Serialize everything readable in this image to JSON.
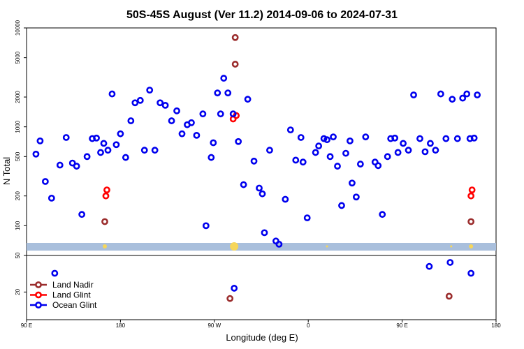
{
  "chart_data": {
    "type": "scatter",
    "title": "50S-45S August (Ver 11.2)   2014-09-06 to 2024-07-31",
    "xlabel": "Longitude (deg E)",
    "ylabel": "N Total",
    "x_tick_labels": [
      "90 E",
      "180",
      "90 W",
      "0",
      "90 E",
      "180"
    ],
    "x_tick_values": [
      90,
      180,
      270,
      360,
      450,
      540
    ],
    "xlim": [
      90,
      540
    ],
    "y_scale": "log",
    "ylim_upper_panel": [
      50,
      10000
    ],
    "y_tick_labels_upper": [
      "10000",
      "5000",
      "2000",
      "1000",
      "500",
      "200",
      "100",
      "50"
    ],
    "y_tick_values_upper": [
      10000,
      5000,
      2000,
      1000,
      500,
      200,
      100,
      50
    ],
    "y_tick_labels_lower": [
      "20"
    ],
    "y_tick_values_lower": [
      20
    ],
    "legend_position": "bottom-left",
    "colors": {
      "land_nadir": "#9b2d2d",
      "land_glint": "#ff0000",
      "ocean_glint": "#0000ee",
      "band": "#a9bfdc",
      "marker_yellow": "#f6d65a"
    },
    "series": [
      {
        "name": "Land Nadir",
        "panel": "upper",
        "x": [
          165,
          290,
          290,
          516
        ],
        "y": [
          110,
          8000,
          4300,
          110
        ]
      },
      {
        "name": "Land Nadir",
        "panel": "lower",
        "x": [
          285,
          495
        ],
        "y": [
          17,
          18
        ]
      },
      {
        "name": "Land Glint",
        "panel": "upper",
        "x": [
          166,
          167,
          288,
          291,
          516,
          517
        ],
        "y": [
          200,
          230,
          1200,
          1300,
          200,
          230
        ]
      },
      {
        "name": "Ocean Glint",
        "panel": "upper",
        "x": [
          99,
          103,
          108,
          114,
          122,
          128,
          134,
          138,
          143,
          148,
          153,
          157,
          161,
          164,
          168,
          172,
          176,
          180,
          185,
          190,
          194,
          199,
          203,
          208,
          213,
          218,
          223,
          229,
          234,
          239,
          244,
          248,
          253,
          259,
          262,
          267,
          269,
          273,
          276,
          279,
          283,
          288,
          293,
          298,
          302,
          308,
          313,
          316,
          318,
          323,
          329,
          332,
          338,
          343,
          348,
          353,
          355,
          359,
          367,
          370,
          375,
          378,
          381,
          384,
          388,
          392,
          396,
          400,
          402,
          406,
          410,
          415,
          424,
          427,
          431,
          436,
          439,
          443,
          446,
          451,
          456,
          461,
          467,
          472,
          477,
          482,
          487,
          492,
          498,
          503,
          508,
          512,
          515,
          519,
          522
        ],
        "y": [
          530,
          720,
          280,
          190,
          410,
          780,
          430,
          400,
          130,
          500,
          760,
          770,
          550,
          680,
          580,
          2150,
          660,
          850,
          490,
          1150,
          1750,
          1850,
          580,
          2350,
          580,
          1750,
          1650,
          1150,
          1450,
          850,
          1050,
          1100,
          820,
          1350,
          100,
          490,
          690,
          2200,
          1350,
          3100,
          2200,
          1350,
          710,
          260,
          1900,
          450,
          240,
          210,
          85,
          580,
          70,
          65,
          185,
          930,
          460,
          780,
          440,
          120,
          550,
          640,
          760,
          740,
          500,
          790,
          400,
          160,
          540,
          720,
          270,
          195,
          420,
          790,
          440,
          405,
          130,
          500,
          760,
          770,
          550,
          680,
          580,
          2100,
          760,
          560,
          680,
          580,
          2150,
          760,
          1900,
          760,
          1950,
          2150,
          760,
          770,
          2100
        ]
      },
      {
        "name": "Ocean Glint",
        "panel": "lower",
        "x": [
          117,
          289,
          476,
          496,
          516
        ],
        "y": [
          32,
          22,
          38,
          42,
          32
        ]
      }
    ],
    "legend": [
      "Land Nadir",
      "Land Glint",
      "Ocean Glint"
    ]
  }
}
